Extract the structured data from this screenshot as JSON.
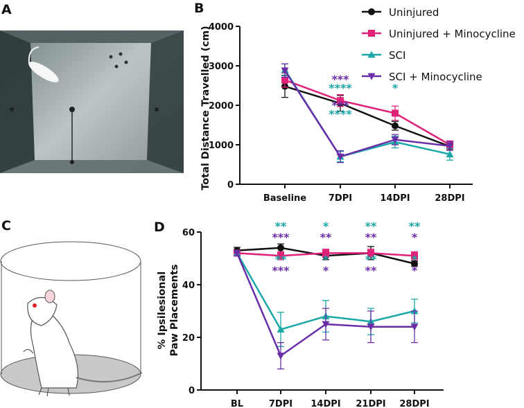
{
  "panels": {
    "a": "A",
    "b": "B",
    "c": "C",
    "d": "D"
  },
  "colors": {
    "Uninjured": "#111111",
    "Uninjured + Minocycline": "#e0217a",
    "SCI": "#1aa7a7",
    "SCI + Minocycline": "#6a2da8"
  },
  "chart_data": [
    {
      "panel": "B",
      "type": "line",
      "title": "",
      "xlabel": "",
      "ylabel": "Total Distance Travelled (cm)",
      "categories": [
        "Baseline",
        "7DPI",
        "14DPI",
        "28DPI"
      ],
      "ylim": [
        0,
        4000
      ],
      "yticks": [
        0,
        1000,
        2000,
        3000,
        4000
      ],
      "legend": "top-right",
      "series": [
        {
          "name": "Uninjured",
          "marker": "circle",
          "values": [
            2480,
            2050,
            1480,
            960
          ],
          "errors": [
            280,
            200,
            110,
            90
          ]
        },
        {
          "name": "Uninjured + Minocycline",
          "marker": "square",
          "values": [
            2640,
            2120,
            1800,
            1000
          ],
          "errors": [
            180,
            150,
            180,
            100
          ]
        },
        {
          "name": "SCI",
          "marker": "triangle-up",
          "values": [
            2900,
            700,
            1070,
            760
          ],
          "errors": [
            150,
            130,
            150,
            150
          ]
        },
        {
          "name": "SCI + Minocycline",
          "marker": "triangle-down",
          "values": [
            2880,
            700,
            1130,
            970
          ],
          "errors": [
            170,
            150,
            130,
            110
          ]
        }
      ],
      "annotations": [
        {
          "category": "7DPI",
          "text": "***",
          "color": "SCI + Minocycline",
          "level": 0
        },
        {
          "category": "7DPI",
          "text": "****",
          "color": "SCI",
          "level": 1
        },
        {
          "category": "7DPI",
          "text": "***",
          "color": "SCI + Minocycline",
          "level": 3
        },
        {
          "category": "7DPI",
          "text": "****",
          "color": "SCI",
          "level": 4
        },
        {
          "category": "14DPI",
          "text": "*",
          "color": "SCI",
          "level": 1
        }
      ]
    },
    {
      "panel": "D",
      "type": "line",
      "title": "",
      "xlabel": "",
      "ylabel": [
        "% Ipsilesional",
        "Paw Placements"
      ],
      "categories": [
        "BL",
        "7DPI",
        "14DPI",
        "21DPI",
        "28DPI"
      ],
      "ylim": [
        0,
        60
      ],
      "yticks": [
        0,
        20,
        40,
        60
      ],
      "series": [
        {
          "name": "Uninjured",
          "marker": "circle",
          "values": [
            53,
            54,
            51,
            52,
            48
          ],
          "errors": [
            1.2,
            1.5,
            1.5,
            2.5,
            1.0
          ]
        },
        {
          "name": "Uninjured + Minocycline",
          "marker": "square",
          "values": [
            52,
            51,
            52,
            52,
            51
          ],
          "errors": [
            1.0,
            1.5,
            1.5,
            1.5,
            1.5
          ]
        },
        {
          "name": "SCI",
          "marker": "triangle-up",
          "values": [
            52,
            23,
            28,
            26,
            30
          ],
          "errors": [
            1.0,
            6.5,
            6.0,
            5.0,
            4.5
          ]
        },
        {
          "name": "SCI + Minocycline",
          "marker": "triangle-down",
          "values": [
            52,
            13,
            25,
            24,
            24
          ],
          "errors": [
            1.0,
            5.0,
            6.0,
            6.0,
            6.0
          ]
        }
      ],
      "annotations": [
        {
          "category": "7DPI",
          "text": "**",
          "color": "SCI",
          "level": 0
        },
        {
          "category": "7DPI",
          "text": "***",
          "color": "SCI + Minocycline",
          "level": 1
        },
        {
          "category": "7DPI",
          "text": "**",
          "color": "SCI",
          "level": 3
        },
        {
          "category": "7DPI",
          "text": "***",
          "color": "SCI + Minocycline",
          "level": 4
        },
        {
          "category": "14DPI",
          "text": "*",
          "color": "SCI",
          "level": 0
        },
        {
          "category": "14DPI",
          "text": "**",
          "color": "SCI + Minocycline",
          "level": 1
        },
        {
          "category": "14DPI",
          "text": "*",
          "color": "SCI",
          "level": 3
        },
        {
          "category": "14DPI",
          "text": "*",
          "color": "SCI + Minocycline",
          "level": 4
        },
        {
          "category": "21DPI",
          "text": "**",
          "color": "SCI",
          "level": 0
        },
        {
          "category": "21DPI",
          "text": "**",
          "color": "SCI + Minocycline",
          "level": 1
        },
        {
          "category": "21DPI",
          "text": "**",
          "color": "SCI",
          "level": 3
        },
        {
          "category": "21DPI",
          "text": "**",
          "color": "SCI + Minocycline",
          "level": 4
        },
        {
          "category": "28DPI",
          "text": "**",
          "color": "SCI",
          "level": 0
        },
        {
          "category": "28DPI",
          "text": "*",
          "color": "SCI + Minocycline",
          "level": 1
        },
        {
          "category": "28DPI",
          "text": "*",
          "color": "SCI",
          "level": 3
        },
        {
          "category": "28DPI",
          "text": "*",
          "color": "SCI + Minocycline",
          "level": 4
        }
      ]
    }
  ]
}
